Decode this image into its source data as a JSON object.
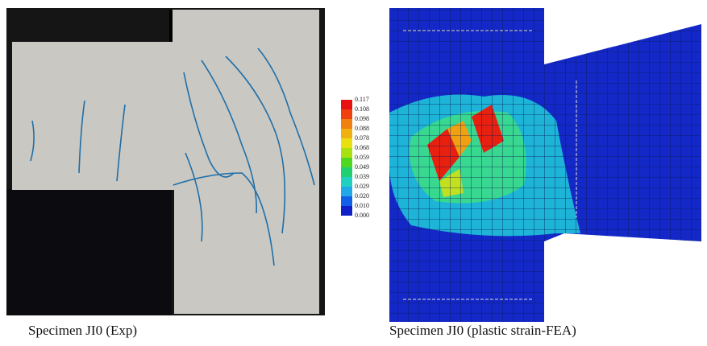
{
  "figure": {
    "panels": [
      {
        "caption": "Specimen JI0 (Exp)"
      },
      {
        "caption": "Specimen JI0 (plastic strain-FEA)"
      }
    ],
    "legend": {
      "labels": [
        "0.117",
        "0.108",
        "0.098",
        "0.088",
        "0.078",
        "0.068",
        "0.059",
        "0.049",
        "0.039",
        "0.029",
        "0.020",
        "0.010",
        "0.000"
      ]
    }
  }
}
